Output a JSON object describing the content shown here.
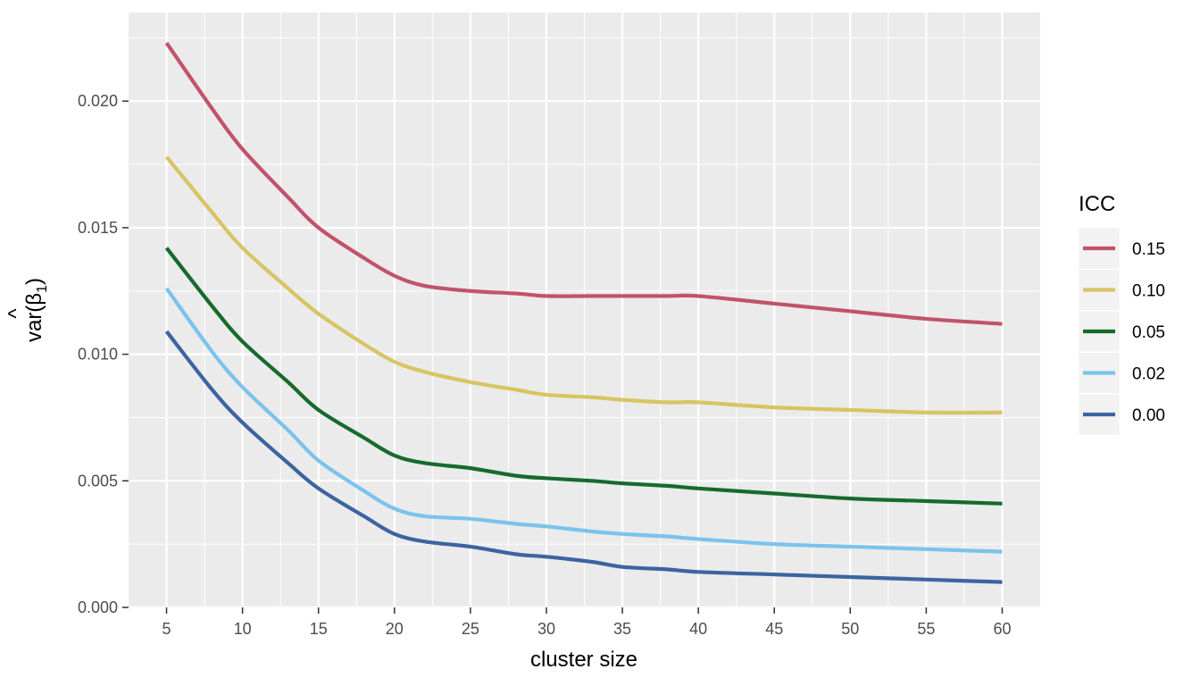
{
  "chart_data": {
    "type": "line",
    "xlabel": "cluster size",
    "ylabel": "var(β̂₁)",
    "ylabel_parts": {
      "prefix": "var(",
      "symbol": "β",
      "hat": "^",
      "subscript": "1",
      "suffix": ")"
    },
    "xlim": [
      2.5,
      62.5
    ],
    "ylim": [
      0,
      0.0235
    ],
    "x_ticks": [
      5,
      10,
      15,
      20,
      25,
      30,
      35,
      40,
      45,
      50,
      55,
      60
    ],
    "y_ticks": [
      0.0,
      0.005,
      0.01,
      0.015,
      0.02
    ],
    "y_tick_labels": [
      "0.000",
      "0.005",
      "0.010",
      "0.015",
      "0.020"
    ],
    "grid": true,
    "legend": {
      "title": "ICC",
      "placement": "right"
    },
    "x": [
      5,
      8,
      10,
      13,
      15,
      18,
      20,
      22,
      25,
      28,
      30,
      33,
      35,
      38,
      40,
      45,
      50,
      55,
      60
    ],
    "series": [
      {
        "name": "0.15",
        "color": "#C1536A",
        "values": [
          0.0223,
          0.0197,
          0.0181,
          0.0162,
          0.015,
          0.0138,
          0.0131,
          0.0127,
          0.0125,
          0.0124,
          0.0123,
          0.0123,
          0.0123,
          0.0123,
          0.0123,
          0.012,
          0.0117,
          0.0114,
          0.0112
        ]
      },
      {
        "name": "0.10",
        "color": "#D8C462",
        "values": [
          0.0178,
          0.0156,
          0.0142,
          0.0126,
          0.0116,
          0.0104,
          0.0097,
          0.0093,
          0.0089,
          0.0086,
          0.0084,
          0.0083,
          0.0082,
          0.0081,
          0.0081,
          0.0079,
          0.0078,
          0.0077,
          0.0077
        ]
      },
      {
        "name": "0.05",
        "color": "#176A2D",
        "values": [
          0.0142,
          0.0119,
          0.0105,
          0.0089,
          0.0078,
          0.0067,
          0.006,
          0.0057,
          0.0055,
          0.0052,
          0.0051,
          0.005,
          0.0049,
          0.0048,
          0.0047,
          0.0045,
          0.0043,
          0.0042,
          0.0041
        ]
      },
      {
        "name": "0.02",
        "color": "#7BC3EC",
        "values": [
          0.0126,
          0.0101,
          0.0087,
          0.007,
          0.0058,
          0.0046,
          0.0039,
          0.0036,
          0.0035,
          0.0033,
          0.0032,
          0.003,
          0.0029,
          0.0028,
          0.0027,
          0.0025,
          0.0024,
          0.0023,
          0.0022
        ]
      },
      {
        "name": "0.00",
        "color": "#3C64A0",
        "values": [
          0.0109,
          0.0086,
          0.0073,
          0.0057,
          0.0047,
          0.0036,
          0.0029,
          0.0026,
          0.0024,
          0.0021,
          0.002,
          0.0018,
          0.0016,
          0.0015,
          0.0014,
          0.0013,
          0.0012,
          0.0011,
          0.001
        ]
      }
    ]
  }
}
